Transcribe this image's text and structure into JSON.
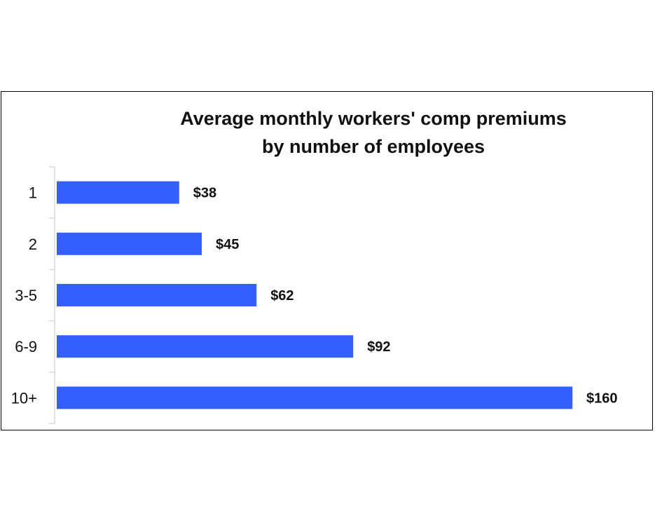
{
  "chart_data": {
    "type": "bar",
    "orientation": "horizontal",
    "title": "Average monthly workers' comp premiums by number of employees",
    "title_lines": [
      "Average monthly workers' comp premiums",
      "by number of employees"
    ],
    "categories": [
      "1",
      "2",
      "3-5",
      "6-9",
      "10+"
    ],
    "values": [
      38,
      45,
      62,
      92,
      160
    ],
    "data_labels": [
      "$38",
      "$45",
      "$62",
      "$92",
      "$160"
    ],
    "xlabel": "",
    "ylabel": "",
    "xlim": [
      0,
      160
    ],
    "grid": false,
    "legend": "none",
    "bar_color": "#3460FF",
    "axis_color": "#D9D9D9"
  }
}
